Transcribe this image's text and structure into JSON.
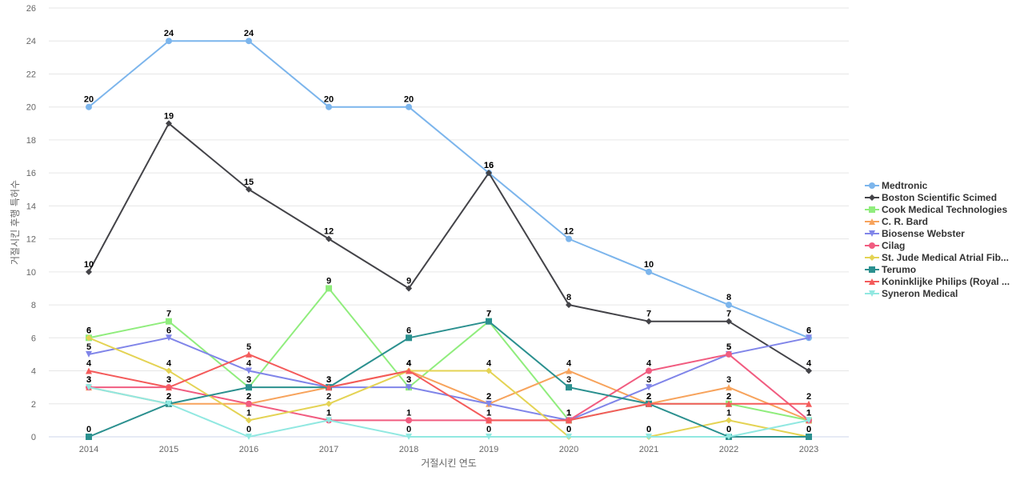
{
  "chart_data": {
    "type": "line",
    "title": "",
    "xlabel": "거절시킨 연도",
    "ylabel": "거절시킨 후행 특허수",
    "ylim": [
      0,
      26
    ],
    "yticks": [
      0,
      2,
      4,
      6,
      8,
      10,
      12,
      14,
      16,
      18,
      20,
      22,
      24,
      26
    ],
    "grid": true,
    "legend_position": "right",
    "x": [
      "2014",
      "2015",
      "2016",
      "2017",
      "2018",
      "2019",
      "2020",
      "2021",
      "2022",
      "2023"
    ],
    "series": [
      {
        "name": "Medtronic",
        "color": "#7cb5ec",
        "marker": "circle",
        "values": [
          20,
          24,
          24,
          20,
          20,
          16,
          12,
          10,
          8,
          6
        ]
      },
      {
        "name": "Boston Scientific Scimed",
        "color": "#434348",
        "marker": "diamond",
        "values": [
          10,
          19,
          15,
          12,
          9,
          16,
          8,
          7,
          7,
          4
        ]
      },
      {
        "name": "Cook Medical Technologies",
        "color": "#90ed7d",
        "marker": "square",
        "values": [
          6,
          7,
          3,
          9,
          3,
          7,
          1,
          2,
          2,
          1
        ]
      },
      {
        "name": "C. R. Bard",
        "color": "#f7a35c",
        "marker": "triangle",
        "values": [
          3,
          2,
          2,
          3,
          4,
          2,
          4,
          2,
          3,
          1
        ]
      },
      {
        "name": "Biosense Webster",
        "color": "#8085e9",
        "marker": "triangle-down",
        "values": [
          5,
          6,
          4,
          3,
          3,
          2,
          1,
          3,
          5,
          6
        ]
      },
      {
        "name": "Cilag",
        "color": "#f15c80",
        "marker": "circle",
        "values": [
          3,
          3,
          2,
          1,
          1,
          1,
          1,
          4,
          5,
          1
        ]
      },
      {
        "name": "St. Jude Medical Atrial Fib...",
        "color": "#e4d354",
        "marker": "diamond",
        "values": [
          6,
          4,
          1,
          2,
          4,
          4,
          0,
          0,
          1,
          0
        ]
      },
      {
        "name": "Terumo",
        "color": "#2b908f",
        "marker": "square",
        "values": [
          0,
          2,
          3,
          3,
          6,
          7,
          3,
          2,
          0,
          0
        ]
      },
      {
        "name": "Koninklijke Philips (Royal ...",
        "color": "#f45b5b",
        "marker": "triangle",
        "values": [
          4,
          3,
          5,
          3,
          4,
          1,
          1,
          2,
          2,
          2
        ]
      },
      {
        "name": "Syneron Medical",
        "color": "#91e8e1",
        "marker": "triangle-down",
        "values": [
          3,
          2,
          0,
          1,
          0,
          0,
          0,
          0,
          0,
          1
        ]
      }
    ]
  }
}
